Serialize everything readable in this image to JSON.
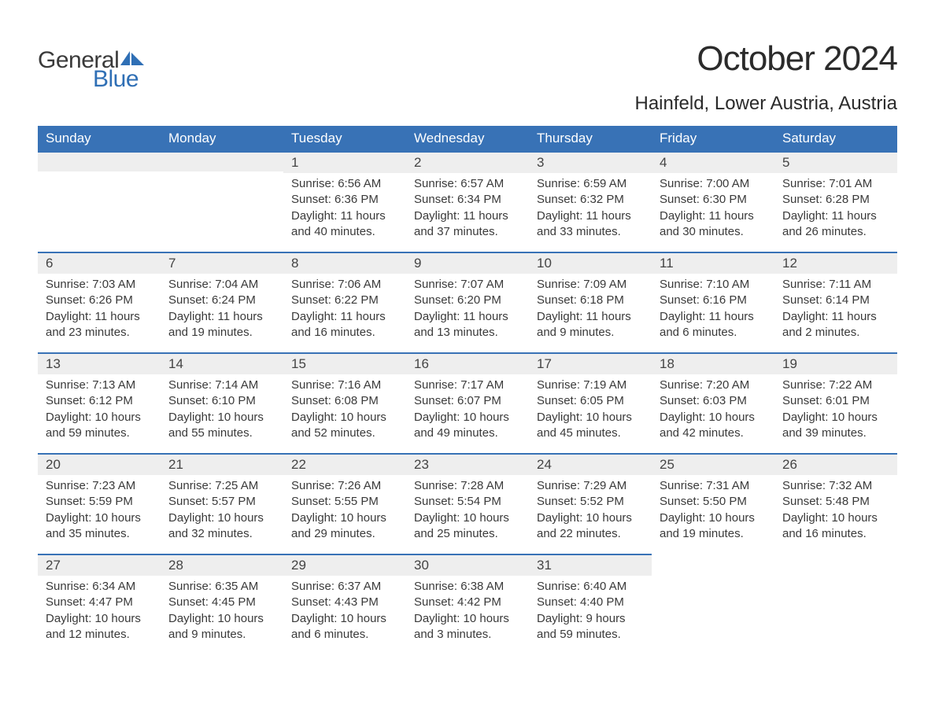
{
  "logo": {
    "general": "General",
    "blue": "Blue"
  },
  "title": "October 2024",
  "location": "Hainfeld, Lower Austria, Austria",
  "colors": {
    "header_bg": "#3872b6",
    "header_text": "#ffffff",
    "daynum_bg": "#eeeeee",
    "daynum_border": "#3872b6",
    "text": "#3a3a3a",
    "logo_blue": "#2f6fb5"
  },
  "weekdays": [
    "Sunday",
    "Monday",
    "Tuesday",
    "Wednesday",
    "Thursday",
    "Friday",
    "Saturday"
  ],
  "weeks": [
    [
      {
        "empty": true
      },
      {
        "empty": true
      },
      {
        "num": "1",
        "sunrise": "Sunrise: 6:56 AM",
        "sunset": "Sunset: 6:36 PM",
        "daylight": "Daylight: 11 hours and 40 minutes."
      },
      {
        "num": "2",
        "sunrise": "Sunrise: 6:57 AM",
        "sunset": "Sunset: 6:34 PM",
        "daylight": "Daylight: 11 hours and 37 minutes."
      },
      {
        "num": "3",
        "sunrise": "Sunrise: 6:59 AM",
        "sunset": "Sunset: 6:32 PM",
        "daylight": "Daylight: 11 hours and 33 minutes."
      },
      {
        "num": "4",
        "sunrise": "Sunrise: 7:00 AM",
        "sunset": "Sunset: 6:30 PM",
        "daylight": "Daylight: 11 hours and 30 minutes."
      },
      {
        "num": "5",
        "sunrise": "Sunrise: 7:01 AM",
        "sunset": "Sunset: 6:28 PM",
        "daylight": "Daylight: 11 hours and 26 minutes."
      }
    ],
    [
      {
        "num": "6",
        "sunrise": "Sunrise: 7:03 AM",
        "sunset": "Sunset: 6:26 PM",
        "daylight": "Daylight: 11 hours and 23 minutes."
      },
      {
        "num": "7",
        "sunrise": "Sunrise: 7:04 AM",
        "sunset": "Sunset: 6:24 PM",
        "daylight": "Daylight: 11 hours and 19 minutes."
      },
      {
        "num": "8",
        "sunrise": "Sunrise: 7:06 AM",
        "sunset": "Sunset: 6:22 PM",
        "daylight": "Daylight: 11 hours and 16 minutes."
      },
      {
        "num": "9",
        "sunrise": "Sunrise: 7:07 AM",
        "sunset": "Sunset: 6:20 PM",
        "daylight": "Daylight: 11 hours and 13 minutes."
      },
      {
        "num": "10",
        "sunrise": "Sunrise: 7:09 AM",
        "sunset": "Sunset: 6:18 PM",
        "daylight": "Daylight: 11 hours and 9 minutes."
      },
      {
        "num": "11",
        "sunrise": "Sunrise: 7:10 AM",
        "sunset": "Sunset: 6:16 PM",
        "daylight": "Daylight: 11 hours and 6 minutes."
      },
      {
        "num": "12",
        "sunrise": "Sunrise: 7:11 AM",
        "sunset": "Sunset: 6:14 PM",
        "daylight": "Daylight: 11 hours and 2 minutes."
      }
    ],
    [
      {
        "num": "13",
        "sunrise": "Sunrise: 7:13 AM",
        "sunset": "Sunset: 6:12 PM",
        "daylight": "Daylight: 10 hours and 59 minutes."
      },
      {
        "num": "14",
        "sunrise": "Sunrise: 7:14 AM",
        "sunset": "Sunset: 6:10 PM",
        "daylight": "Daylight: 10 hours and 55 minutes."
      },
      {
        "num": "15",
        "sunrise": "Sunrise: 7:16 AM",
        "sunset": "Sunset: 6:08 PM",
        "daylight": "Daylight: 10 hours and 52 minutes."
      },
      {
        "num": "16",
        "sunrise": "Sunrise: 7:17 AM",
        "sunset": "Sunset: 6:07 PM",
        "daylight": "Daylight: 10 hours and 49 minutes."
      },
      {
        "num": "17",
        "sunrise": "Sunrise: 7:19 AM",
        "sunset": "Sunset: 6:05 PM",
        "daylight": "Daylight: 10 hours and 45 minutes."
      },
      {
        "num": "18",
        "sunrise": "Sunrise: 7:20 AM",
        "sunset": "Sunset: 6:03 PM",
        "daylight": "Daylight: 10 hours and 42 minutes."
      },
      {
        "num": "19",
        "sunrise": "Sunrise: 7:22 AM",
        "sunset": "Sunset: 6:01 PM",
        "daylight": "Daylight: 10 hours and 39 minutes."
      }
    ],
    [
      {
        "num": "20",
        "sunrise": "Sunrise: 7:23 AM",
        "sunset": "Sunset: 5:59 PM",
        "daylight": "Daylight: 10 hours and 35 minutes."
      },
      {
        "num": "21",
        "sunrise": "Sunrise: 7:25 AM",
        "sunset": "Sunset: 5:57 PM",
        "daylight": "Daylight: 10 hours and 32 minutes."
      },
      {
        "num": "22",
        "sunrise": "Sunrise: 7:26 AM",
        "sunset": "Sunset: 5:55 PM",
        "daylight": "Daylight: 10 hours and 29 minutes."
      },
      {
        "num": "23",
        "sunrise": "Sunrise: 7:28 AM",
        "sunset": "Sunset: 5:54 PM",
        "daylight": "Daylight: 10 hours and 25 minutes."
      },
      {
        "num": "24",
        "sunrise": "Sunrise: 7:29 AM",
        "sunset": "Sunset: 5:52 PM",
        "daylight": "Daylight: 10 hours and 22 minutes."
      },
      {
        "num": "25",
        "sunrise": "Sunrise: 7:31 AM",
        "sunset": "Sunset: 5:50 PM",
        "daylight": "Daylight: 10 hours and 19 minutes."
      },
      {
        "num": "26",
        "sunrise": "Sunrise: 7:32 AM",
        "sunset": "Sunset: 5:48 PM",
        "daylight": "Daylight: 10 hours and 16 minutes."
      }
    ],
    [
      {
        "num": "27",
        "sunrise": "Sunrise: 6:34 AM",
        "sunset": "Sunset: 4:47 PM",
        "daylight": "Daylight: 10 hours and 12 minutes."
      },
      {
        "num": "28",
        "sunrise": "Sunrise: 6:35 AM",
        "sunset": "Sunset: 4:45 PM",
        "daylight": "Daylight: 10 hours and 9 minutes."
      },
      {
        "num": "29",
        "sunrise": "Sunrise: 6:37 AM",
        "sunset": "Sunset: 4:43 PM",
        "daylight": "Daylight: 10 hours and 6 minutes."
      },
      {
        "num": "30",
        "sunrise": "Sunrise: 6:38 AM",
        "sunset": "Sunset: 4:42 PM",
        "daylight": "Daylight: 10 hours and 3 minutes."
      },
      {
        "num": "31",
        "sunrise": "Sunrise: 6:40 AM",
        "sunset": "Sunset: 4:40 PM",
        "daylight": "Daylight: 9 hours and 59 minutes."
      },
      {
        "blank": true
      },
      {
        "blank": true
      }
    ]
  ]
}
